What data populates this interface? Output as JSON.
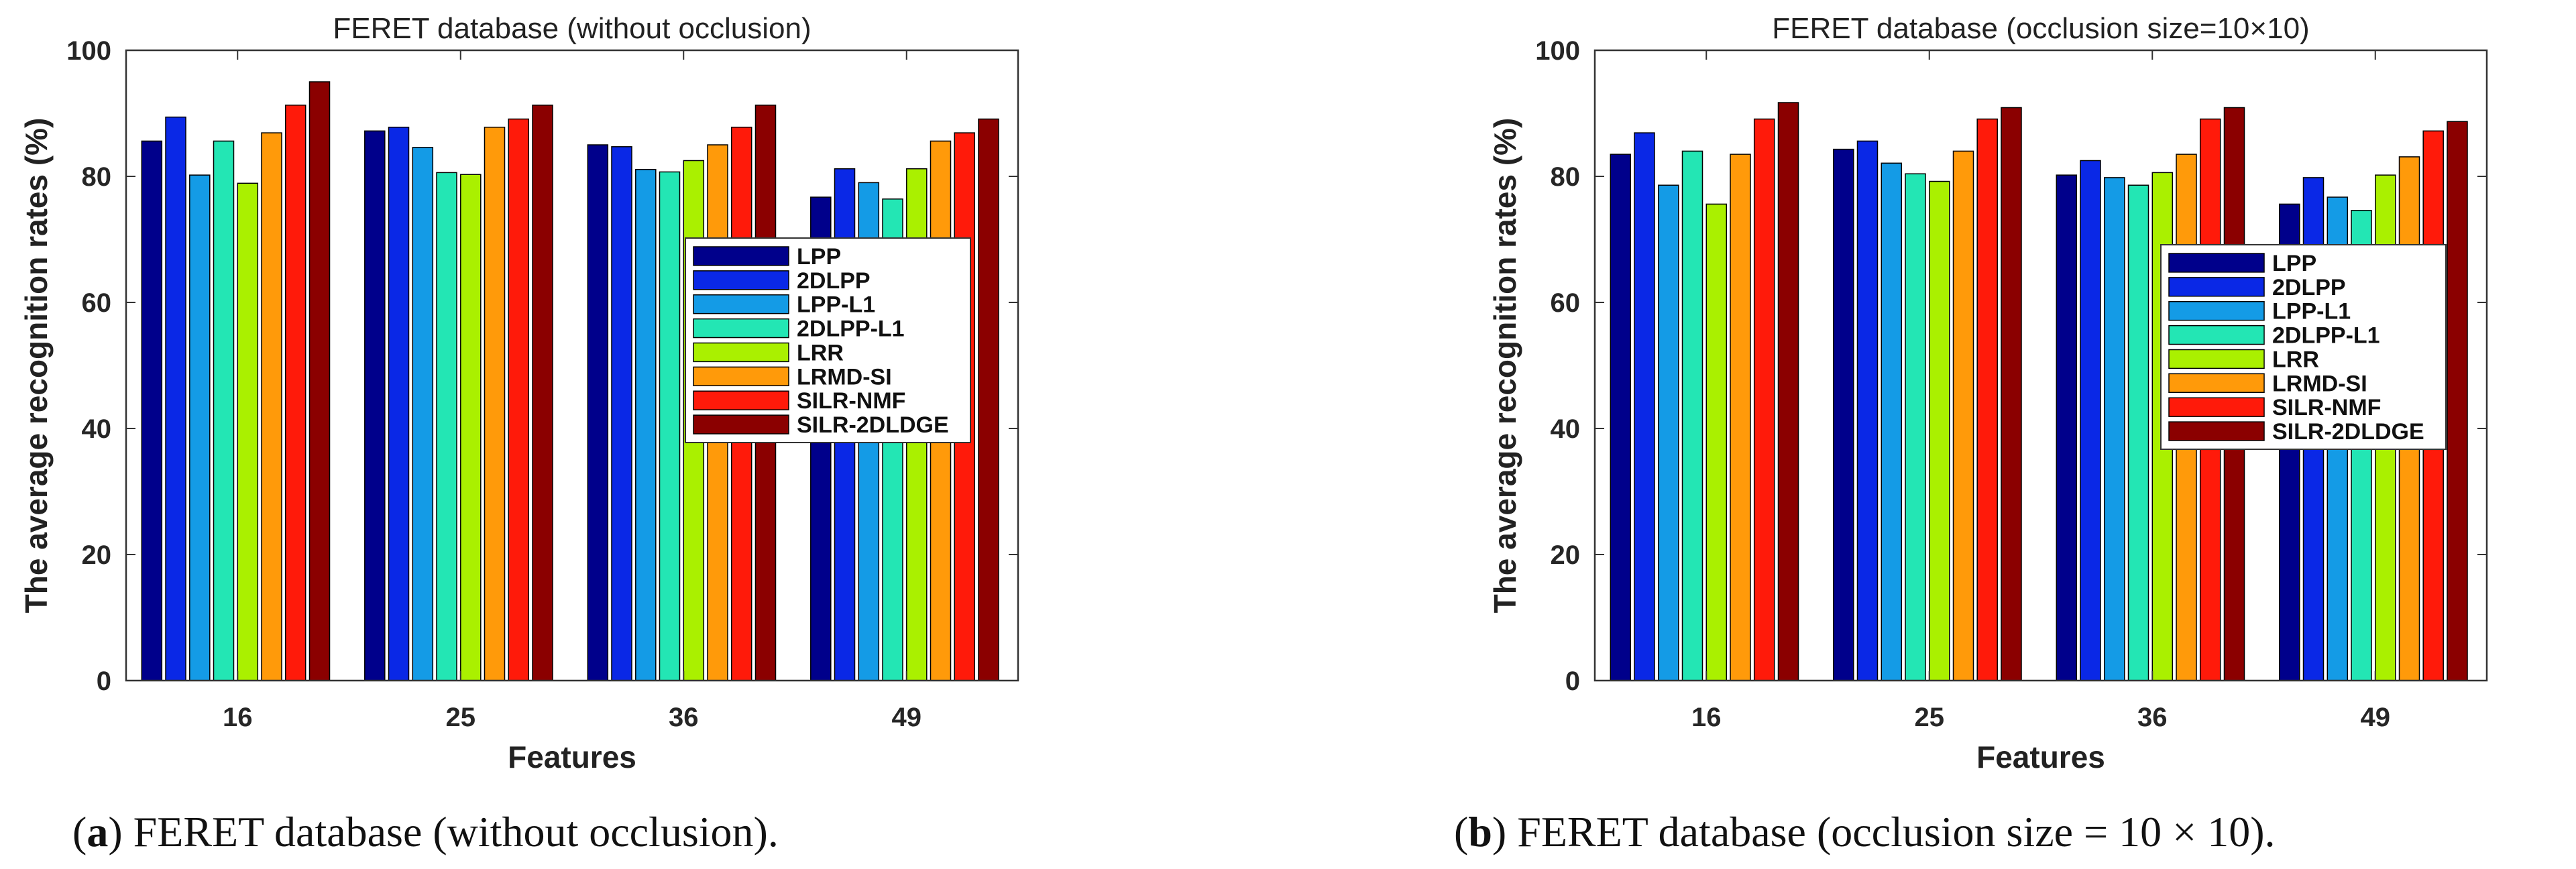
{
  "chart_data": [
    {
      "type": "bar",
      "title": "FERET database (without occlusion)",
      "xlabel": "Features",
      "ylabel": "The average recognition rates (%)",
      "ylim": [
        0,
        100
      ],
      "yticks": [
        0,
        20,
        40,
        60,
        80,
        100
      ],
      "categories": [
        "16",
        "25",
        "36",
        "49"
      ],
      "legend_position": "center-right",
      "series": [
        {
          "name": "LPP",
          "color": "#00008b",
          "values": [
            85.6,
            87.2,
            85.0,
            76.7
          ]
        },
        {
          "name": "2DLPP",
          "color": "#0a28e6",
          "values": [
            89.4,
            87.8,
            84.7,
            81.2
          ]
        },
        {
          "name": "LPP-L1",
          "color": "#149be6",
          "values": [
            80.2,
            84.6,
            81.1,
            79.0
          ]
        },
        {
          "name": "2DLPP-L1",
          "color": "#23e6b4",
          "values": [
            85.6,
            80.6,
            80.7,
            76.4
          ]
        },
        {
          "name": "LRR",
          "color": "#aaf000",
          "values": [
            78.9,
            80.3,
            82.5,
            81.2
          ]
        },
        {
          "name": "LRMD-SI",
          "color": "#ff9a0a",
          "values": [
            86.9,
            87.8,
            85.0,
            85.6
          ]
        },
        {
          "name": "SILR-NMF",
          "color": "#ff1a0a",
          "values": [
            91.3,
            89.1,
            87.8,
            86.9
          ]
        },
        {
          "name": "SILR-2DLDGE",
          "color": "#8b0000",
          "values": [
            95.0,
            91.3,
            91.3,
            89.1
          ]
        }
      ],
      "caption_letter": "a",
      "caption_text": "FERET database (without occlusion)."
    },
    {
      "type": "bar",
      "title": "FERET database (occlusion size=10×10)",
      "xlabel": "Features",
      "ylabel": "The average recognition rates (%)",
      "ylim": [
        0,
        100
      ],
      "yticks": [
        0,
        20,
        40,
        60,
        80,
        100
      ],
      "categories": [
        "16",
        "25",
        "36",
        "49"
      ],
      "legend_position": "center-right",
      "series": [
        {
          "name": "LPP",
          "color": "#00008b",
          "values": [
            83.5,
            84.3,
            80.2,
            75.6
          ]
        },
        {
          "name": "2DLPP",
          "color": "#0a28e6",
          "values": [
            86.9,
            85.6,
            82.5,
            79.8
          ]
        },
        {
          "name": "LPP-L1",
          "color": "#149be6",
          "values": [
            78.6,
            82.1,
            79.8,
            76.7
          ]
        },
        {
          "name": "2DLPP-L1",
          "color": "#23e6b4",
          "values": [
            84.0,
            80.4,
            78.6,
            74.6
          ]
        },
        {
          "name": "LRR",
          "color": "#aaf000",
          "values": [
            75.6,
            79.2,
            80.6,
            80.2
          ]
        },
        {
          "name": "LRMD-SI",
          "color": "#ff9a0a",
          "values": [
            83.5,
            84.0,
            83.5,
            83.1
          ]
        },
        {
          "name": "SILR-NMF",
          "color": "#ff1a0a",
          "values": [
            89.1,
            89.1,
            89.1,
            87.2
          ]
        },
        {
          "name": "SILR-2DLDGE",
          "color": "#8b0000",
          "values": [
            91.7,
            90.9,
            90.9,
            88.7
          ]
        }
      ],
      "caption_letter": "b",
      "caption_text": "FERET database (occlusion size = 10 × 10)."
    }
  ]
}
